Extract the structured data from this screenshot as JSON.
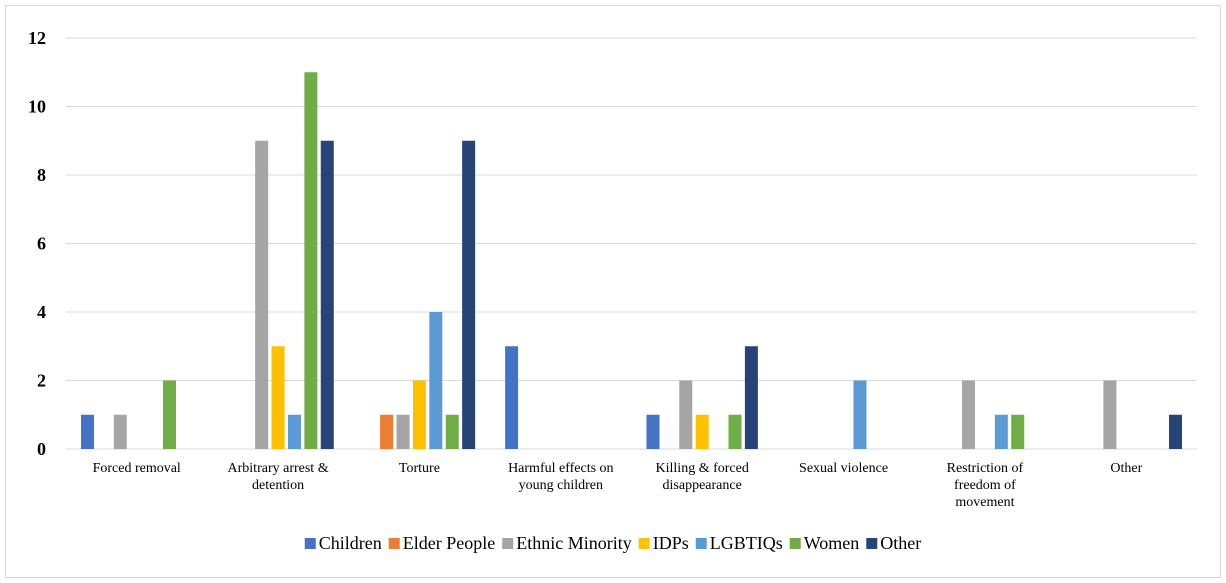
{
  "chart_data": {
    "type": "bar",
    "title": "",
    "xlabel": "",
    "ylabel": "",
    "ylim": [
      0,
      12
    ],
    "yticks": [
      0,
      2,
      4,
      6,
      8,
      10,
      12
    ],
    "grid": true,
    "legend_position": "bottom",
    "categories": [
      [
        "Forced removal"
      ],
      [
        "Arbitrary arrest &",
        "detention"
      ],
      [
        "Torture"
      ],
      [
        "Harmful effects on",
        "young children"
      ],
      [
        "Killing & forced",
        "disappearance"
      ],
      [
        "Sexual violence"
      ],
      [
        "Restriction of",
        "freedom of",
        "movement"
      ],
      [
        "Other"
      ]
    ],
    "series": [
      {
        "name": "Children",
        "color": "#4472C4",
        "values": [
          1,
          0,
          0,
          3,
          1,
          0,
          0,
          0
        ]
      },
      {
        "name": "Elder People",
        "color": "#ED7D31",
        "values": [
          0,
          0,
          1,
          0,
          0,
          0,
          0,
          0
        ]
      },
      {
        "name": "Ethnic Minority",
        "color": "#A5A5A5",
        "values": [
          1,
          9,
          1,
          0,
          2,
          0,
          2,
          2
        ]
      },
      {
        "name": "IDPs",
        "color": "#FFC000",
        "values": [
          0,
          3,
          2,
          0,
          1,
          0,
          0,
          0
        ]
      },
      {
        "name": "LGBTIQs",
        "color": "#5B9BD5",
        "values": [
          0,
          1,
          4,
          0,
          0,
          2,
          1,
          0
        ]
      },
      {
        "name": "Women",
        "color": "#70AD47",
        "values": [
          2,
          11,
          1,
          0,
          1,
          0,
          1,
          0
        ]
      },
      {
        "name": "Other",
        "color": "#264478",
        "values": [
          0,
          9,
          9,
          0,
          3,
          0,
          0,
          1
        ]
      }
    ],
    "gridline_color": "#d9d9d9"
  }
}
